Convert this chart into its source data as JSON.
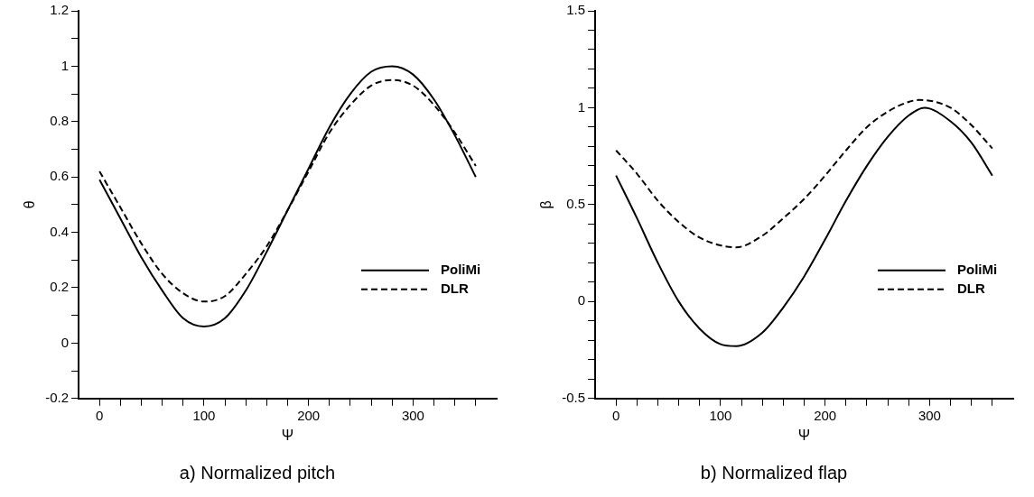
{
  "chart_data": [
    {
      "type": "line",
      "title": "a) Normalized pitch",
      "xlabel": "Ψ",
      "ylabel": "θ",
      "xlim": [
        -20,
        380
      ],
      "xticks": [
        0,
        {
          "value": 20,
          "label": null
        },
        {
          "value": 40,
          "label": null
        },
        {
          "value": 60,
          "label": null
        },
        {
          "value": 80,
          "label": null
        },
        100,
        {
          "value": 120,
          "label": null
        },
        {
          "value": 140,
          "label": null
        },
        {
          "value": 160,
          "label": null
        },
        {
          "value": 180,
          "label": null
        },
        200,
        {
          "value": 220,
          "label": null
        },
        {
          "value": 240,
          "label": null
        },
        {
          "value": 260,
          "label": null
        },
        {
          "value": 280,
          "label": null
        },
        300,
        {
          "value": 320,
          "label": null
        },
        {
          "value": 340,
          "label": null
        },
        {
          "value": 360,
          "label": null
        }
      ],
      "ylim": [
        -0.2,
        1.2
      ],
      "yticks": [
        -0.2,
        {
          "value": -0.1,
          "label": null
        },
        0,
        {
          "value": 0.1,
          "label": null
        },
        0.2,
        {
          "value": 0.3,
          "label": null
        },
        0.4,
        {
          "value": 0.5,
          "label": null
        },
        0.6,
        {
          "value": 0.7,
          "label": null
        },
        0.8,
        {
          "value": 0.9,
          "label": null
        },
        1,
        {
          "value": 1.1,
          "label": null
        },
        1.2
      ],
      "x": [
        0,
        20,
        40,
        60,
        80,
        100,
        120,
        140,
        160,
        180,
        200,
        220,
        240,
        260,
        280,
        300,
        320,
        340,
        360
      ],
      "legend": "bottom right",
      "grid": false,
      "marker": "none",
      "series": [
        {
          "name": "PoliMi",
          "color": "#000000",
          "line_style": "solid",
          "values": [
            0.59,
            0.45,
            0.31,
            0.19,
            0.09,
            0.06,
            0.09,
            0.19,
            0.33,
            0.48,
            0.63,
            0.78,
            0.9,
            0.98,
            1.0,
            0.97,
            0.88,
            0.75,
            0.6
          ]
        },
        {
          "name": "DLR",
          "color": "#000000",
          "line_style": "dashed",
          "values": [
            0.62,
            0.49,
            0.36,
            0.25,
            0.18,
            0.15,
            0.17,
            0.25,
            0.35,
            0.48,
            0.62,
            0.76,
            0.86,
            0.93,
            0.95,
            0.93,
            0.86,
            0.76,
            0.64
          ]
        }
      ]
    },
    {
      "type": "line",
      "title": "b) Normalized flap",
      "xlabel": "Ψ",
      "ylabel": "β",
      "xlim": [
        -20,
        380
      ],
      "xticks": [
        0,
        {
          "value": 20,
          "label": null
        },
        {
          "value": 40,
          "label": null
        },
        {
          "value": 60,
          "label": null
        },
        {
          "value": 80,
          "label": null
        },
        100,
        {
          "value": 120,
          "label": null
        },
        {
          "value": 140,
          "label": null
        },
        {
          "value": 160,
          "label": null
        },
        {
          "value": 180,
          "label": null
        },
        200,
        {
          "value": 220,
          "label": null
        },
        {
          "value": 240,
          "label": null
        },
        {
          "value": 260,
          "label": null
        },
        {
          "value": 280,
          "label": null
        },
        300,
        {
          "value": 320,
          "label": null
        },
        {
          "value": 340,
          "label": null
        },
        {
          "value": 360,
          "label": null
        }
      ],
      "ylim": [
        -0.5,
        1.5
      ],
      "yticks": [
        -0.5,
        {
          "value": -0.4,
          "label": null
        },
        {
          "value": -0.3,
          "label": null
        },
        {
          "value": -0.2,
          "label": null
        },
        {
          "value": -0.1,
          "label": null
        },
        0,
        {
          "value": 0.1,
          "label": null
        },
        {
          "value": 0.2,
          "label": null
        },
        {
          "value": 0.3,
          "label": null
        },
        {
          "value": 0.4,
          "label": null
        },
        0.5,
        {
          "value": 0.6,
          "label": null
        },
        {
          "value": 0.7,
          "label": null
        },
        {
          "value": 0.8,
          "label": null
        },
        {
          "value": 0.9,
          "label": null
        },
        1,
        {
          "value": 1.1,
          "label": null
        },
        {
          "value": 1.2,
          "label": null
        },
        {
          "value": 1.3,
          "label": null
        },
        {
          "value": 1.4,
          "label": null
        },
        1.5
      ],
      "legend": "bottom right",
      "grid": false,
      "marker": "none",
      "series": [
        {
          "name": "PoliMi",
          "color": "#000000",
          "line_style": "solid",
          "x": [
            0,
            20,
            40,
            60,
            80,
            100,
            115,
            140,
            160,
            180,
            200,
            220,
            240,
            260,
            280,
            295,
            320,
            340,
            360
          ],
          "values": [
            0.65,
            0.43,
            0.2,
            0.0,
            -0.14,
            -0.22,
            -0.23,
            -0.16,
            -0.03,
            0.13,
            0.32,
            0.52,
            0.7,
            0.85,
            0.96,
            1.0,
            0.93,
            0.82,
            0.65
          ]
        },
        {
          "name": "DLR",
          "color": "#000000",
          "line_style": "dashed",
          "x": [
            0,
            20,
            40,
            60,
            80,
            100,
            115,
            140,
            160,
            180,
            200,
            220,
            240,
            260,
            280,
            290,
            320,
            340,
            360
          ],
          "values": [
            0.78,
            0.66,
            0.52,
            0.41,
            0.33,
            0.29,
            0.28,
            0.34,
            0.43,
            0.53,
            0.65,
            0.78,
            0.9,
            0.98,
            1.03,
            1.04,
            1.0,
            0.91,
            0.79
          ]
        }
      ]
    }
  ]
}
